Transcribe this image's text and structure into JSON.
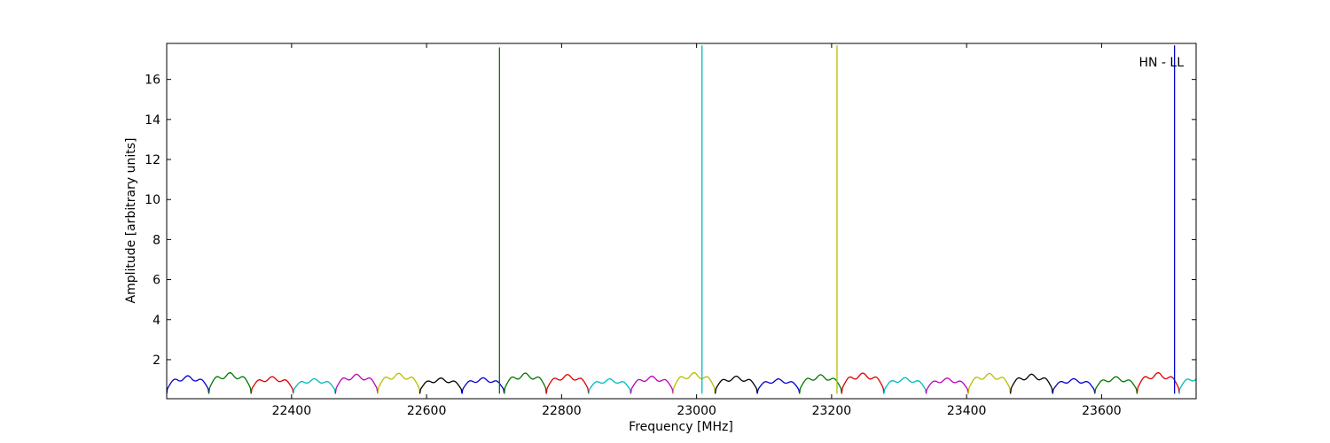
{
  "chart_data": {
    "type": "line",
    "title": "",
    "xlabel": "Frequency [MHz]",
    "ylabel": "Amplitude [arbitrary units]",
    "annotation": "HN - LL",
    "xlim": [
      22215,
      23740
    ],
    "ylim": [
      0.05,
      17.8
    ],
    "xticks": [
      22400,
      22600,
      22800,
      23000,
      23200,
      23400,
      23600
    ],
    "yticks": [
      2,
      4,
      6,
      8,
      10,
      12,
      14,
      16
    ],
    "grid": false,
    "legend": "none",
    "color_cycle": [
      "#0000cc",
      "#007700",
      "#dd0000",
      "#00bbbb",
      "#bb00bb",
      "#bbbb00",
      "#000000"
    ],
    "band_width_mhz": 62.5,
    "ripple_lobes_per_band": 3,
    "ripple_peak": 1.35,
    "ripple_trough": 0.3,
    "spikes": [
      {
        "x": 22708,
        "y": 17.6,
        "color": "#007700"
      },
      {
        "x": 23008,
        "y": 17.7,
        "color": "#00bbbb"
      },
      {
        "x": 23208,
        "y": 17.7,
        "color": "#bbbb00"
      },
      {
        "x": 23708,
        "y": 17.7,
        "color": "#0000cc"
      }
    ]
  }
}
